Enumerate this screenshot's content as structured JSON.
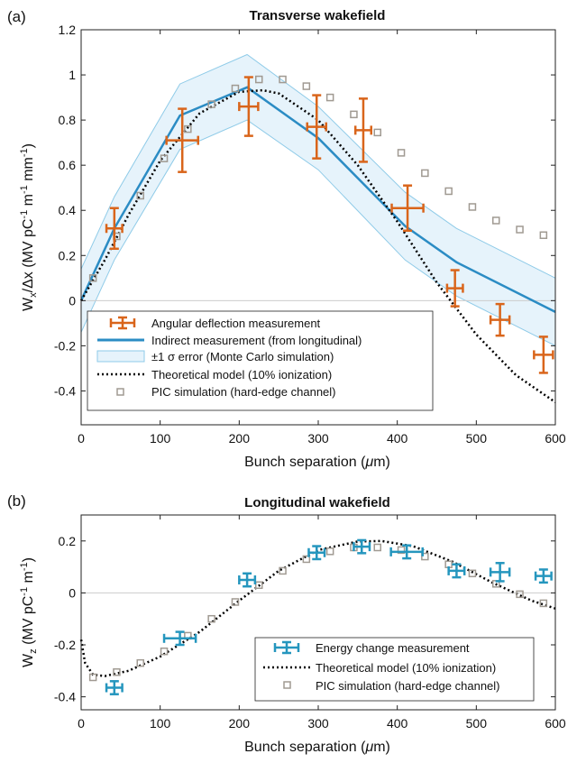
{
  "chart_data": [
    {
      "panel_label": "(a)",
      "type": "line",
      "title": "Transverse wakefield",
      "xlabel": "Bunch separation (μm)",
      "ylabel": "W_x/Δx (MV pC⁻¹ m⁻¹ mm⁻¹)",
      "xlim": [
        0,
        600
      ],
      "ylim": [
        -0.55,
        1.2
      ],
      "xticks": [
        0,
        100,
        200,
        300,
        400,
        500,
        600
      ],
      "yticks": [
        -0.4,
        -0.2,
        0,
        0.2,
        0.4,
        0.6,
        0.8,
        1,
        1.2
      ],
      "legend_position": "bottom-left",
      "colors": {
        "measurement": "#d9651b",
        "indirect": "#2b8cc4",
        "band_fill": "#e6f3fb",
        "band_edge": "#8fcbe8",
        "pic": "#a09a92",
        "theory": "#000000"
      },
      "legend": [
        {
          "key": "measurement",
          "label": "Angular deflection measurement"
        },
        {
          "key": "indirect",
          "label": "Indirect measurement (from longitudinal)"
        },
        {
          "key": "band",
          "label": "±1 σ error (Monte Carlo simulation)"
        },
        {
          "key": "theory",
          "label": "Theoretical model (10% ionization)"
        },
        {
          "key": "pic",
          "label": "PIC simulation (hard-edge channel)"
        }
      ],
      "measurement": [
        {
          "x": 42,
          "y": 0.32,
          "xerr": 10,
          "yerr": 0.09
        },
        {
          "x": 128,
          "y": 0.71,
          "xerr": 20,
          "yerr": 0.14
        },
        {
          "x": 212,
          "y": 0.86,
          "xerr": 12,
          "yerr": 0.13
        },
        {
          "x": 298,
          "y": 0.77,
          "xerr": 12,
          "yerr": 0.14
        },
        {
          "x": 357,
          "y": 0.755,
          "xerr": 10,
          "yerr": 0.14
        },
        {
          "x": 413,
          "y": 0.41,
          "xerr": 20,
          "yerr": 0.1
        },
        {
          "x": 473,
          "y": 0.055,
          "xerr": 10,
          "yerr": 0.08
        },
        {
          "x": 530,
          "y": -0.085,
          "xerr": 12,
          "yerr": 0.07
        },
        {
          "x": 585,
          "y": -0.24,
          "xerr": 12,
          "yerr": 0.08
        }
      ],
      "indirect": {
        "x": [
          0,
          42,
          125,
          210,
          300,
          410,
          475,
          600
        ],
        "y": [
          0,
          0.32,
          0.82,
          0.945,
          0.72,
          0.33,
          0.17,
          -0.05
        ]
      },
      "band_upper": {
        "x": [
          0,
          42,
          125,
          210,
          300,
          410,
          475,
          600
        ],
        "y": [
          0.14,
          0.46,
          0.96,
          1.09,
          0.86,
          0.48,
          0.32,
          0.1
        ]
      },
      "band_lower": {
        "x": [
          0,
          42,
          125,
          210,
          300,
          410,
          475,
          600
        ],
        "y": [
          -0.14,
          0.18,
          0.67,
          0.8,
          0.58,
          0.18,
          0.02,
          -0.2
        ]
      },
      "theory": {
        "x": [
          0,
          30,
          60,
          100,
          150,
          200,
          230,
          250,
          300,
          350,
          400,
          450,
          500,
          550,
          600
        ],
        "y": [
          0.0,
          0.18,
          0.38,
          0.62,
          0.83,
          0.925,
          0.932,
          0.918,
          0.8,
          0.6,
          0.35,
          0.08,
          -0.15,
          -0.33,
          -0.45
        ]
      },
      "pic": {
        "x": [
          15,
          45,
          75,
          105,
          135,
          165,
          195,
          225,
          255,
          285,
          315,
          345,
          375,
          405,
          435,
          465,
          495,
          525,
          555,
          585
        ],
        "y": [
          0.1,
          0.285,
          0.465,
          0.63,
          0.76,
          0.87,
          0.94,
          0.98,
          0.98,
          0.95,
          0.9,
          0.825,
          0.745,
          0.655,
          0.565,
          0.485,
          0.415,
          0.355,
          0.315,
          0.29
        ]
      }
    },
    {
      "panel_label": "(b)",
      "type": "line",
      "title": "Longitudinal wakefield",
      "xlabel": "Bunch separation (μm)",
      "ylabel": "W_z (MV pC⁻¹ m⁻¹)",
      "xlim": [
        0,
        600
      ],
      "ylim": [
        -0.45,
        0.3
      ],
      "xticks": [
        0,
        100,
        200,
        300,
        400,
        500,
        600
      ],
      "yticks": [
        -0.4,
        -0.2,
        0,
        0.2
      ],
      "legend_position": "bottom-right",
      "colors": {
        "measurement": "#2596be",
        "pic": "#a09a92",
        "theory": "#000000"
      },
      "legend": [
        {
          "key": "measurement",
          "label": "Energy change measurement"
        },
        {
          "key": "theory",
          "label": "Theoretical model (10% ionization)"
        },
        {
          "key": "pic",
          "label": "PIC simulation (hard-edge channel)"
        }
      ],
      "measurement": [
        {
          "x": 42,
          "y": -0.365,
          "xerr": 10,
          "yerr": 0.025
        },
        {
          "x": 125,
          "y": -0.175,
          "xerr": 20,
          "yerr": 0.025
        },
        {
          "x": 210,
          "y": 0.05,
          "xerr": 10,
          "yerr": 0.025
        },
        {
          "x": 298,
          "y": 0.155,
          "xerr": 10,
          "yerr": 0.025
        },
        {
          "x": 355,
          "y": 0.178,
          "xerr": 10,
          "yerr": 0.025
        },
        {
          "x": 412,
          "y": 0.158,
          "xerr": 20,
          "yerr": 0.025
        },
        {
          "x": 475,
          "y": 0.085,
          "xerr": 10,
          "yerr": 0.025
        },
        {
          "x": 530,
          "y": 0.08,
          "xerr": 12,
          "yerr": 0.035
        },
        {
          "x": 585,
          "y": 0.065,
          "xerr": 10,
          "yerr": 0.025
        }
      ],
      "theory": {
        "x": [
          0,
          5,
          15,
          30,
          60,
          100,
          150,
          200,
          250,
          300,
          350,
          380,
          420,
          470,
          520,
          570,
          600
        ],
        "y": [
          -0.18,
          -0.27,
          -0.315,
          -0.32,
          -0.3,
          -0.245,
          -0.15,
          -0.03,
          0.085,
          0.165,
          0.198,
          0.2,
          0.18,
          0.12,
          0.04,
          -0.03,
          -0.06
        ]
      },
      "pic": {
        "x": [
          15,
          45,
          75,
          105,
          135,
          165,
          195,
          225,
          255,
          285,
          315,
          345,
          375,
          405,
          435,
          465,
          495,
          525,
          555,
          585
        ],
        "y": [
          -0.325,
          -0.305,
          -0.27,
          -0.225,
          -0.165,
          -0.1,
          -0.035,
          0.03,
          0.085,
          0.13,
          0.16,
          0.175,
          0.175,
          0.165,
          0.14,
          0.11,
          0.075,
          0.035,
          -0.005,
          -0.04
        ]
      }
    }
  ]
}
